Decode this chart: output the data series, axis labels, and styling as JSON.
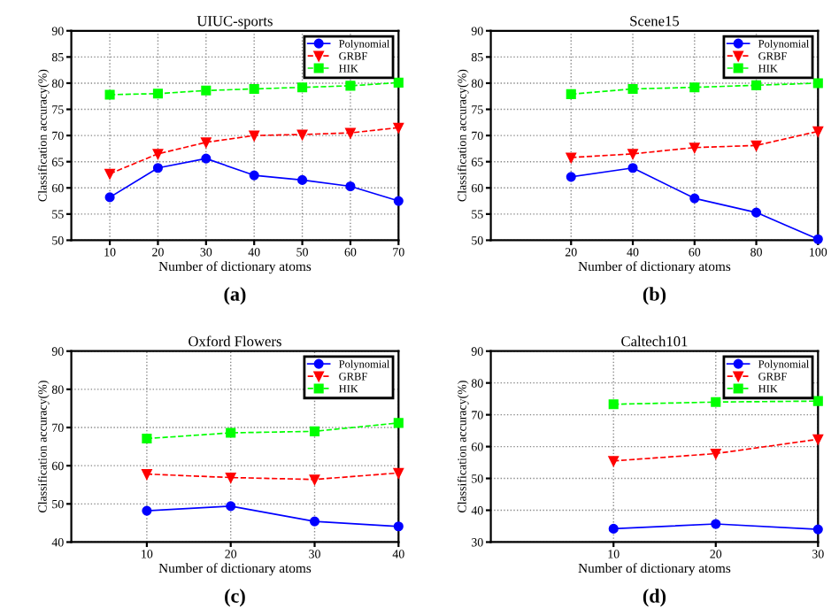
{
  "chart_data": [
    {
      "type": "line",
      "title": "UIUC-sports",
      "xlabel": "Number of dictionary atoms",
      "ylabel": "Classification accuracy(%)",
      "annotations": [
        "(a)"
      ],
      "x": [
        10,
        20,
        30,
        40,
        50,
        60,
        70
      ],
      "xlim": [
        2,
        70
      ],
      "xticks": [
        10,
        20,
        30,
        40,
        50,
        60,
        70
      ],
      "ylim": [
        50,
        90
      ],
      "yticks": [
        50,
        55,
        60,
        65,
        70,
        75,
        80,
        85,
        90
      ],
      "grid": true,
      "legend": "top right",
      "series": [
        {
          "name": "Polynomial",
          "color": "#0000ff",
          "marker": "circle",
          "line_style": "solid",
          "values": [
            58.2,
            63.8,
            65.6,
            62.4,
            61.5,
            60.3,
            57.5
          ]
        },
        {
          "name": "GRBF",
          "color": "#ff0000",
          "marker": "triangle",
          "line_style": "dashed",
          "values": [
            62.7,
            66.5,
            68.7,
            70.0,
            70.2,
            70.5,
            71.5
          ]
        },
        {
          "name": "HIK",
          "color": "#00ff00",
          "marker": "square",
          "line_style": "dashed",
          "values": [
            77.8,
            78.0,
            78.6,
            78.9,
            79.2,
            79.5,
            80.1
          ]
        }
      ]
    },
    {
      "type": "line",
      "title": "Scene15",
      "xlabel": "Number of dictionary atoms",
      "ylabel": "Classification accuracy(%)",
      "annotations": [
        "(b)"
      ],
      "x": [
        20,
        40,
        60,
        80,
        100
      ],
      "xlim": [
        -6,
        100
      ],
      "xticks": [
        20,
        40,
        60,
        80,
        100
      ],
      "ylim": [
        50,
        90
      ],
      "yticks": [
        50,
        55,
        60,
        65,
        70,
        75,
        80,
        85,
        90
      ],
      "grid": true,
      "legend": "top right",
      "series": [
        {
          "name": "Polynomial",
          "color": "#0000ff",
          "marker": "circle",
          "line_style": "solid",
          "values": [
            62.1,
            63.8,
            58.0,
            55.3,
            50.2
          ]
        },
        {
          "name": "GRBF",
          "color": "#ff0000",
          "marker": "triangle",
          "line_style": "dashed",
          "values": [
            65.8,
            66.5,
            67.7,
            68.1,
            70.8
          ]
        },
        {
          "name": "HIK",
          "color": "#00ff00",
          "marker": "square",
          "line_style": "dashed",
          "values": [
            77.9,
            78.9,
            79.2,
            79.6,
            80.0
          ]
        }
      ]
    },
    {
      "type": "line",
      "title": "Oxford Flowers",
      "xlabel": "Number of dictionary atoms",
      "ylabel": "Classification accuracy(%)",
      "annotations": [
        "(c)"
      ],
      "x": [
        10,
        20,
        30,
        40
      ],
      "xlim": [
        1,
        40
      ],
      "xticks": [
        10,
        20,
        30,
        40
      ],
      "ylim": [
        40,
        90
      ],
      "yticks": [
        40,
        50,
        60,
        70,
        80,
        90
      ],
      "grid": true,
      "legend": "top right",
      "series": [
        {
          "name": "Polynomial",
          "color": "#0000ff",
          "marker": "circle",
          "line_style": "solid",
          "values": [
            48.2,
            49.4,
            45.4,
            44.1
          ]
        },
        {
          "name": "GRBF",
          "color": "#ff0000",
          "marker": "triangle",
          "line_style": "dashed",
          "values": [
            57.8,
            56.9,
            56.4,
            58.1
          ]
        },
        {
          "name": "HIK",
          "color": "#00ff00",
          "marker": "square",
          "line_style": "dashed",
          "values": [
            67.1,
            68.6,
            69.0,
            71.2
          ]
        }
      ]
    },
    {
      "type": "line",
      "title": "Caltech101",
      "xlabel": "Number of dictionary atoms",
      "ylabel": "Classification accuracy(%)",
      "annotations": [
        "(d)"
      ],
      "x": [
        10,
        20,
        30
      ],
      "xlim": [
        -2,
        30
      ],
      "xticks": [
        10,
        20,
        30
      ],
      "ylim": [
        30,
        90
      ],
      "yticks": [
        30,
        40,
        50,
        60,
        70,
        80,
        90
      ],
      "grid": true,
      "legend": "top right",
      "series": [
        {
          "name": "Polynomial",
          "color": "#0000ff",
          "marker": "circle",
          "line_style": "solid",
          "values": [
            34.2,
            35.7,
            34.0
          ]
        },
        {
          "name": "GRBF",
          "color": "#ff0000",
          "marker": "triangle",
          "line_style": "dashed",
          "values": [
            55.5,
            57.8,
            62.3
          ]
        },
        {
          "name": "HIK",
          "color": "#00ff00",
          "marker": "square",
          "line_style": "dashed",
          "values": [
            73.3,
            74.0,
            74.3
          ]
        }
      ]
    }
  ]
}
